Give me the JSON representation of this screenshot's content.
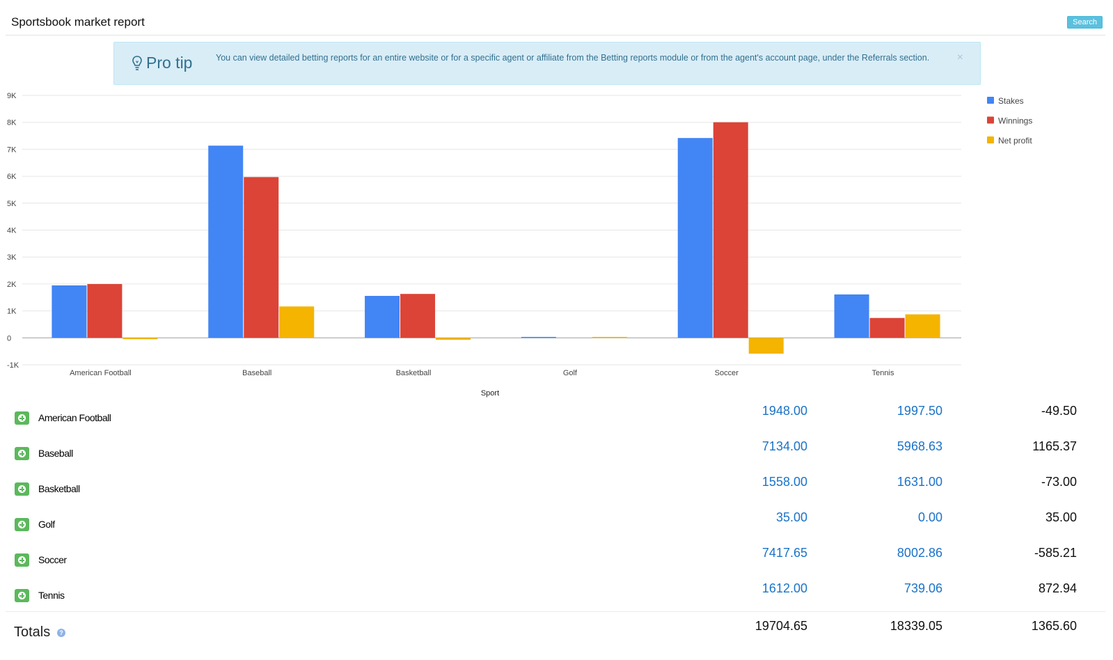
{
  "header": {
    "title": "Sportsbook market report",
    "search_label": "Search"
  },
  "protip": {
    "title": "Pro tip",
    "text": "You can view detailed betting reports for an entire website or for a specific agent or affiliate from the Betting reports module or from the agent's account page, under the Referrals section.",
    "close": "×"
  },
  "chart_data": {
    "type": "bar",
    "title": "",
    "xlabel": "Sport",
    "ylabel": "",
    "categories": [
      "American Football",
      "Baseball",
      "Basketball",
      "Golf",
      "Soccer",
      "Tennis"
    ],
    "series": [
      {
        "name": "Stakes",
        "color": "#4285f4",
        "values": [
          1948.0,
          7134.0,
          1558.0,
          35.0,
          7417.65,
          1612.0
        ]
      },
      {
        "name": "Winnings",
        "color": "#db4437",
        "values": [
          1997.5,
          5968.63,
          1631.0,
          0.0,
          8002.86,
          739.06
        ]
      },
      {
        "name": "Net profit",
        "color": "#f4b400",
        "values": [
          -49.5,
          1165.37,
          -73.0,
          35.0,
          -585.21,
          872.94
        ]
      }
    ],
    "ylim": [
      -1000,
      9000
    ],
    "yticks": [
      -1000,
      0,
      1000,
      2000,
      3000,
      4000,
      5000,
      6000,
      7000,
      8000,
      9000
    ],
    "ytick_labels": [
      "-1K",
      "0",
      "1K",
      "2K",
      "3K",
      "4K",
      "5K",
      "6K",
      "7K",
      "8K",
      "9K"
    ],
    "grid": true,
    "legend_position": "right"
  },
  "rows": [
    {
      "sport": "American Football",
      "stakes": "1948.00",
      "winnings": "1997.50",
      "net": "-49.50"
    },
    {
      "sport": "Baseball",
      "stakes": "7134.00",
      "winnings": "5968.63",
      "net": "1165.37"
    },
    {
      "sport": "Basketball",
      "stakes": "1558.00",
      "winnings": "1631.00",
      "net": "-73.00"
    },
    {
      "sport": "Golf",
      "stakes": "35.00",
      "winnings": "0.00",
      "net": "35.00"
    },
    {
      "sport": "Soccer",
      "stakes": "7417.65",
      "winnings": "8002.86",
      "net": "-585.21"
    },
    {
      "sport": "Tennis",
      "stakes": "1612.00",
      "winnings": "739.06",
      "net": "872.94"
    }
  ],
  "totals": {
    "label": "Totals",
    "help": "?",
    "stakes": "19704.65",
    "winnings": "18339.05",
    "net": "1365.60"
  }
}
